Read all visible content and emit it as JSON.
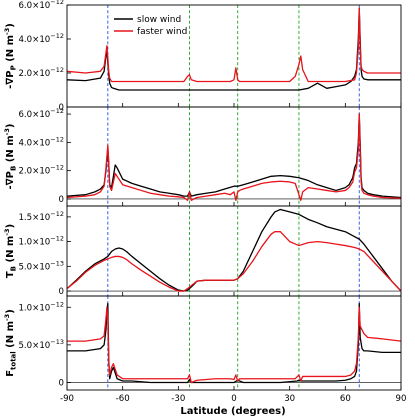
{
  "figure": {
    "xlabel": "Latitude (degrees)",
    "legend": [
      {
        "name": "slow wind",
        "color": "#000000"
      },
      {
        "name": "faster wind",
        "color": "#e8141b"
      }
    ]
  },
  "chart_data": [
    {
      "type": "line",
      "panel": "a",
      "ylabel": {
        "main": "-∇P",
        "sub": "P",
        "unit": " (N m",
        "unit_sup": "-3",
        "close": ")"
      },
      "xlim": [
        -90,
        90
      ],
      "ylim": [
        0,
        6e-12
      ],
      "yticks": [
        {
          "value": 0,
          "label": "0"
        },
        {
          "value": 2e-12,
          "label": "2.0×10",
          "sup": "−12"
        },
        {
          "value": 4e-12,
          "label": "4.0×10",
          "sup": "−12"
        },
        {
          "value": 6e-12,
          "label": "6.0×10",
          "sup": "−12"
        }
      ],
      "legend_position": "top-left",
      "series": [
        {
          "name": "slow wind",
          "color": "#000000",
          "x": [
            -90,
            -80,
            -72,
            -70,
            -69,
            -68.5,
            -68,
            -67.5,
            -67,
            -66,
            -65,
            -62,
            -55,
            -45,
            -35,
            -30,
            -25,
            -20,
            -10,
            0,
            10,
            20,
            30,
            35,
            40,
            45,
            50,
            55,
            60,
            63,
            65,
            66,
            67,
            67.5,
            68,
            68.5,
            69,
            70,
            72,
            80,
            90
          ],
          "y": [
            1.6e-12,
            1.55e-12,
            1.7e-12,
            2.1e-12,
            3e-12,
            3.3e-12,
            2.6e-12,
            1.9e-12,
            1.4e-12,
            1.15e-12,
            1.1e-12,
            1e-12,
            1e-12,
            1e-12,
            1e-12,
            1e-12,
            1e-12,
            1e-12,
            1e-12,
            1e-12,
            1e-12,
            1e-12,
            1e-12,
            1e-12,
            1.1e-12,
            1.4e-12,
            1.1e-12,
            1.2e-12,
            1.3e-12,
            1.5e-12,
            1.8e-12,
            2.2e-12,
            4e-12,
            5.8e-12,
            4e-12,
            2.2e-12,
            1.8e-12,
            1.65e-12,
            1.6e-12,
            1.6e-12,
            1.6e-12
          ]
        },
        {
          "name": "faster wind",
          "color": "#e8141b",
          "x": [
            -90,
            -80,
            -72,
            -70,
            -69,
            -68.5,
            -68,
            -67.5,
            -67,
            -66,
            -60,
            -45,
            -35,
            -27,
            -25,
            -24,
            -23,
            -20,
            -10,
            -2,
            0,
            1,
            2,
            3,
            5,
            10,
            20,
            30,
            33,
            35,
            36,
            37,
            40,
            50,
            60,
            65,
            66,
            67,
            67.5,
            68,
            68.5,
            69,
            70,
            72,
            80,
            90
          ],
          "y": [
            2.1e-12,
            2e-12,
            2.1e-12,
            2.4e-12,
            3.2e-12,
            3.6e-12,
            2.9e-12,
            2.1e-12,
            1.7e-12,
            1.5e-12,
            1.5e-12,
            1.5e-12,
            1.5e-12,
            1.5e-12,
            1.8e-12,
            1.9e-12,
            1.6e-12,
            1.5e-12,
            1.5e-12,
            1.5e-12,
            1.6e-12,
            2.3e-12,
            1.6e-12,
            1.5e-12,
            1.5e-12,
            1.5e-12,
            1.5e-12,
            1.5e-12,
            1.8e-12,
            2.5e-12,
            3e-12,
            2.2e-12,
            1.5e-12,
            1.5e-12,
            1.5e-12,
            1.6e-12,
            2e-12,
            3.5e-12,
            5.8e-12,
            3.5e-12,
            2.4e-12,
            2.2e-12,
            2.1e-12,
            2e-12,
            2e-12,
            2e-12
          ]
        }
      ],
      "vlines": [
        {
          "x": -68,
          "color": "#1f4fe0"
        },
        {
          "x": -24,
          "color": "#20a020"
        },
        {
          "x": 2,
          "color": "#20a020"
        },
        {
          "x": 35,
          "color": "#20a020"
        },
        {
          "x": 67.5,
          "color": "#1f4fe0"
        }
      ]
    },
    {
      "type": "line",
      "panel": "b",
      "ylabel": {
        "main": "-∇P",
        "sub": "B",
        "unit": " (N m",
        "unit_sup": "-3",
        "close": ")"
      },
      "xlim": [
        -90,
        90
      ],
      "ylim": [
        -5e-13,
        6.5e-12
      ],
      "yticks": [
        {
          "value": 0,
          "label": "0"
        },
        {
          "value": 2e-12,
          "label": "2.0×10",
          "sup": "−12"
        },
        {
          "value": 4e-12,
          "label": "4.0×10",
          "sup": "−12"
        },
        {
          "value": 6e-12,
          "label": "6.0×10",
          "sup": "−12"
        }
      ],
      "series": [
        {
          "name": "slow wind",
          "color": "#000000",
          "x": [
            -90,
            -80,
            -75,
            -72,
            -70,
            -69,
            -68,
            -67.5,
            -67,
            -66,
            -65,
            -64,
            -63,
            -60,
            -55,
            -50,
            -45,
            -40,
            -35,
            -30,
            -27,
            -25,
            -24,
            -23,
            -20,
            -15,
            -10,
            -5,
            0,
            2,
            5,
            10,
            15,
            20,
            25,
            30,
            35,
            40,
            45,
            50,
            55,
            60,
            62,
            64,
            65,
            66,
            67,
            67.5,
            68,
            68.5,
            69,
            70,
            72,
            75,
            80,
            90
          ],
          "y": [
            2e-13,
            3e-13,
            5e-13,
            7e-13,
            1e-12,
            2e-12,
            3.6e-12,
            2.5e-12,
            1e-12,
            8e-13,
            1.6e-12,
            2.4e-12,
            2.2e-12,
            1.4e-12,
            1.1e-12,
            9e-13,
            7e-13,
            5e-13,
            4e-13,
            3e-13,
            2e-13,
            2e-13,
            5e-13,
            2e-13,
            3e-13,
            4e-13,
            5e-13,
            7e-13,
            9e-13,
            9e-13,
            1e-12,
            1.2e-12,
            1.4e-12,
            1.6e-12,
            1.65e-12,
            1.6e-12,
            1.5e-12,
            1.3e-12,
            1e-12,
            8e-13,
            6e-13,
            8e-13,
            1e-12,
            1.5e-12,
            2.2e-12,
            2.5e-12,
            4e-12,
            6e-12,
            4e-12,
            1.5e-12,
            8e-13,
            6e-13,
            4e-13,
            3e-13,
            2e-13,
            1e-13
          ]
        },
        {
          "name": "faster wind",
          "color": "#e8141b",
          "x": [
            -90,
            -80,
            -75,
            -72,
            -70,
            -69,
            -68,
            -67.5,
            -67,
            -66,
            -65,
            -64,
            -63,
            -60,
            -55,
            -50,
            -45,
            -40,
            -35,
            -30,
            -27,
            -25,
            -24,
            -23,
            -20,
            -15,
            -10,
            -5,
            -2,
            0,
            1,
            2,
            3,
            5,
            10,
            15,
            20,
            25,
            30,
            33,
            35,
            36,
            37,
            40,
            45,
            50,
            55,
            60,
            62,
            64,
            65,
            66,
            67,
            67.5,
            68,
            68.5,
            69,
            70,
            72,
            75,
            80,
            90
          ],
          "y": [
            1e-13,
            2e-13,
            3e-13,
            5e-13,
            9e-13,
            2.2e-12,
            3.8e-12,
            2.6e-12,
            9e-13,
            6e-13,
            1.2e-12,
            1.8e-12,
            1.6e-12,
            1e-12,
            8e-13,
            6e-13,
            4e-13,
            3e-13,
            2e-13,
            1.5e-13,
            1e-13,
            -1e-13,
            5e-13,
            -1e-13,
            1e-13,
            2e-13,
            3e-13,
            4e-13,
            3e-13,
            5e-13,
            -1e-13,
            5e-13,
            6e-13,
            7e-13,
            9e-13,
            1.1e-12,
            1.2e-12,
            1.25e-12,
            1.2e-12,
            1.1e-12,
            3e-13,
            -1e-13,
            5e-13,
            8e-13,
            7e-13,
            6e-13,
            5e-13,
            6e-13,
            8e-13,
            1.2e-12,
            1.9e-12,
            2.2e-12,
            3.5e-12,
            6e-12,
            3.5e-12,
            1.2e-12,
            6e-13,
            4e-13,
            3e-13,
            2e-13,
            1e-13,
            5e-14
          ]
        }
      ],
      "vlines": [
        {
          "x": -68,
          "color": "#1f4fe0"
        },
        {
          "x": -24,
          "color": "#20a020"
        },
        {
          "x": 2,
          "color": "#20a020"
        },
        {
          "x": 35,
          "color": "#20a020"
        },
        {
          "x": 67.5,
          "color": "#1f4fe0"
        }
      ]
    },
    {
      "type": "line",
      "panel": "c",
      "ylabel": {
        "main": "T",
        "sub": "B",
        "unit": " (N m",
        "unit_sup": "-3",
        "close": ")"
      },
      "xlim": [
        -90,
        90
      ],
      "ylim": [
        -1e-13,
        1.72e-12
      ],
      "yticks": [
        {
          "value": 0,
          "label": "0"
        },
        {
          "value": 5e-13,
          "label": "5.0×10",
          "sup": "−13"
        },
        {
          "value": 1e-12,
          "label": "1.0×10",
          "sup": "−12"
        },
        {
          "value": 1.5e-12,
          "label": "1.5×10",
          "sup": "−12"
        }
      ],
      "series": [
        {
          "name": "slow wind",
          "color": "#000000",
          "x": [
            -90,
            -85,
            -80,
            -75,
            -70,
            -68,
            -66,
            -64,
            -62,
            -60,
            -58,
            -55,
            -50,
            -45,
            -40,
            -35,
            -30,
            -27,
            -25,
            -24,
            -22,
            -20,
            -15,
            -10,
            -5,
            0,
            2,
            5,
            10,
            15,
            20,
            22,
            25,
            30,
            35,
            40,
            45,
            50,
            55,
            60,
            65,
            67.5,
            70,
            75,
            80,
            85,
            90
          ],
          "y": [
            5e-14,
            2.2e-13,
            4e-13,
            5.5e-13,
            6.5e-13,
            7e-13,
            8e-13,
            8.5e-13,
            8.7e-13,
            8.5e-13,
            8e-13,
            7e-13,
            5.5e-13,
            4e-13,
            2.5e-13,
            1.2e-13,
            2e-14,
            0.0,
            2e-14,
            5e-14,
            1.2e-13,
            2e-13,
            2.2e-13,
            2.2e-13,
            2.2e-13,
            2.2e-13,
            2.5e-13,
            4e-13,
            8e-13,
            1.2e-12,
            1.5e-12,
            1.6e-12,
            1.65e-12,
            1.6e-12,
            1.55e-12,
            1.45e-12,
            1.38e-12,
            1.3e-12,
            1.25e-12,
            1.2e-12,
            1.1e-12,
            1.05e-12,
            9.5e-13,
            7e-13,
            4.5e-13,
            2e-13,
            0.0
          ]
        },
        {
          "name": "faster wind",
          "color": "#e8141b",
          "x": [
            -90,
            -85,
            -80,
            -75,
            -70,
            -68,
            -66,
            -64,
            -62,
            -60,
            -58,
            -55,
            -50,
            -45,
            -40,
            -35,
            -30,
            -27,
            -25,
            -24,
            -22,
            -20,
            -15,
            -10,
            -5,
            0,
            2,
            5,
            10,
            15,
            20,
            22,
            25,
            30,
            35,
            40,
            45,
            50,
            55,
            60,
            65,
            67.5,
            70,
            75,
            80,
            85,
            90
          ],
          "y": [
            5e-14,
            2e-13,
            3.8e-13,
            5.2e-13,
            6.2e-13,
            6.5e-13,
            6.8e-13,
            7e-13,
            7e-13,
            6.8e-13,
            6.4e-13,
            5.5e-13,
            4.2e-13,
            3e-13,
            1.8e-13,
            8e-14,
            0.0,
            0.0,
            5e-14,
            8e-14,
            1.4e-13,
            2e-13,
            2.2e-13,
            2.2e-13,
            2.2e-13,
            2.2e-13,
            2.5e-13,
            3.5e-13,
            6e-13,
            9e-13,
            1.15e-12,
            1.2e-12,
            1.2e-12,
            1e-12,
            9.2e-13,
            9.8e-13,
            1e-12,
            9.8e-13,
            9.5e-13,
            9.2e-13,
            8.8e-13,
            8.5e-13,
            8e-13,
            6e-13,
            4e-13,
            2e-13,
            0.0
          ]
        }
      ],
      "vlines": [
        {
          "x": -68,
          "color": "#1f4fe0"
        },
        {
          "x": -24,
          "color": "#20a020"
        },
        {
          "x": 2,
          "color": "#20a020"
        },
        {
          "x": 35,
          "color": "#20a020"
        },
        {
          "x": 67.5,
          "color": "#1f4fe0"
        }
      ]
    },
    {
      "type": "line",
      "panel": "d",
      "ylabel": {
        "main": "F",
        "sub": "total",
        "unit": " (N m",
        "unit_sup": "-3",
        "close": ")"
      },
      "xlim": [
        -90,
        90
      ],
      "ylim": [
        -1e-13,
        1.15e-12
      ],
      "yticks": [
        {
          "value": 0,
          "label": "0"
        },
        {
          "value": 5e-13,
          "label": "5.0×10",
          "sup": "−13"
        },
        {
          "value": 1e-12,
          "label": "1.0×10",
          "sup": "−12"
        }
      ],
      "xticks": [
        -90,
        -60,
        -30,
        0,
        30,
        60,
        90
      ],
      "series": [
        {
          "name": "slow wind",
          "color": "#000000",
          "x": [
            -90,
            -80,
            -72,
            -70,
            -69,
            -68.5,
            -68,
            -67.5,
            -67,
            -66,
            -65,
            -63,
            -60,
            -55,
            -45,
            -35,
            -25,
            -24,
            -23,
            -15,
            -5,
            0,
            2,
            5,
            15,
            25,
            34,
            35,
            36,
            45,
            55,
            60,
            63,
            65,
            66,
            67,
            67.5,
            68,
            69,
            70,
            72,
            80,
            90
          ],
          "y": [
            4.2e-13,
            4.2e-13,
            4.5e-13,
            5e-13,
            7e-13,
            9.5e-13,
            1.05e-12,
            3e-13,
            5e-14,
            1.5e-13,
            2e-13,
            5e-14,
            2e-14,
            2e-14,
            0.0,
            0.0,
            0.0,
            4e-14,
            0.0,
            0.0,
            0.0,
            0.0,
            3e-14,
            0.0,
            0.0,
            0.0,
            2e-14,
            3e-14,
            2e-14,
            2e-14,
            2e-14,
            3e-14,
            5e-14,
            8e-14,
            1.5e-13,
            5e-13,
            1.05e-12,
            6e-13,
            4.5e-13,
            4.2e-13,
            4.2e-13,
            4e-13,
            4e-13
          ]
        },
        {
          "name": "faster wind",
          "color": "#e8141b",
          "x": [
            -90,
            -80,
            -72,
            -70,
            -69,
            -68.5,
            -68,
            -67.5,
            -67,
            -66,
            -65,
            -63,
            -60,
            -55,
            -45,
            -35,
            -27,
            -25,
            -24,
            -23,
            -20,
            -10,
            -2,
            0,
            1,
            2,
            3,
            5,
            15,
            25,
            33,
            35,
            36,
            37,
            45,
            55,
            60,
            63,
            65,
            66,
            67,
            67.5,
            68,
            69,
            70,
            72,
            80,
            90
          ],
          "y": [
            5.5e-13,
            5.5e-13,
            5.8e-13,
            6.2e-13,
            8.5e-13,
            1e-12,
            8.5e-13,
            2.5e-13,
            1e-13,
            2e-13,
            2.5e-13,
            1e-13,
            5e-14,
            5e-14,
            5e-14,
            5e-14,
            5e-14,
            5e-14,
            1e-13,
            0.0,
            3e-14,
            5e-14,
            5e-14,
            4e-14,
            1e-13,
            2e-14,
            5e-14,
            5e-14,
            5e-14,
            5e-14,
            5e-14,
            1e-13,
            2e-14,
            8e-14,
            8e-14,
            8e-14,
            8e-14,
            1e-13,
            1.5e-13,
            2.5e-13,
            6e-13,
            1e-12,
            7.5e-13,
            7e-13,
            6.5e-13,
            6e-13,
            5.8e-13,
            5.5e-13
          ]
        }
      ],
      "vlines": [
        {
          "x": -68,
          "color": "#1f4fe0"
        },
        {
          "x": -24,
          "color": "#20a020"
        },
        {
          "x": 2,
          "color": "#20a020"
        },
        {
          "x": 35,
          "color": "#20a020"
        },
        {
          "x": 67.5,
          "color": "#1f4fe0"
        }
      ]
    }
  ]
}
